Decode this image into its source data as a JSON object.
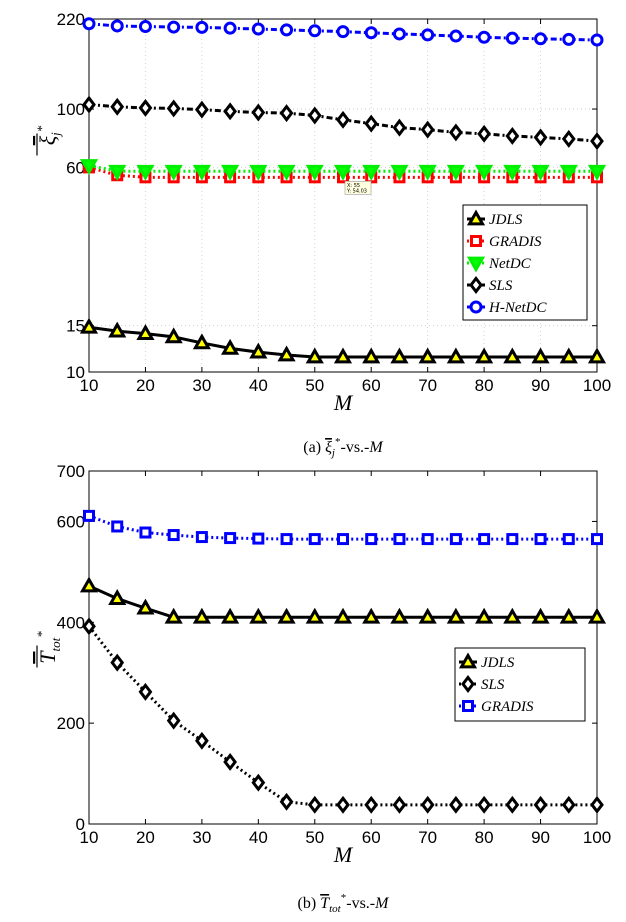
{
  "chart_data": [
    {
      "type": "line",
      "caption": "(a) ξj*-vs.-M",
      "caption_text": {
        "prefix": "(a) ",
        "symbol": "ξ",
        "sub": "j",
        "sup": "*",
        "suffix": "-vs.-",
        "var": "M"
      },
      "ylabel": {
        "symbol": "ξ",
        "sub": "j",
        "sup": "*"
      },
      "xlabel": "M",
      "x": [
        10,
        15,
        20,
        25,
        30,
        35,
        40,
        45,
        50,
        55,
        60,
        65,
        70,
        75,
        80,
        85,
        90,
        95,
        100
      ],
      "xlim": [
        10,
        100
      ],
      "ylim": [
        10,
        220
      ],
      "yscale": "log",
      "yticks": [
        10,
        15,
        60,
        100,
        220
      ],
      "xticks": [
        10,
        20,
        30,
        40,
        50,
        60,
        70,
        80,
        90,
        100
      ],
      "grid": true,
      "legend_position": "right",
      "series": [
        {
          "name": "JDLS",
          "color": "#000000",
          "fill": "#ffff00",
          "marker": "triangle-up",
          "line": "solid",
          "values": [
            14.8,
            14.3,
            14.0,
            13.6,
            12.9,
            12.3,
            11.9,
            11.6,
            11.4,
            11.4,
            11.4,
            11.4,
            11.4,
            11.4,
            11.4,
            11.4,
            11.4,
            11.4,
            11.4
          ]
        },
        {
          "name": "GRADIS",
          "color": "#ff0000",
          "fill": "#ffffff",
          "marker": "square",
          "line": "dotted",
          "values": [
            60,
            56,
            55,
            55,
            55,
            55,
            55,
            55,
            55,
            55,
            55,
            55,
            55,
            55,
            55,
            55,
            55,
            55,
            55
          ]
        },
        {
          "name": "NetDC",
          "color": "#00ee00",
          "fill": "#00ff00",
          "marker": "triangle-down",
          "line": "dotted",
          "values": [
            61,
            58,
            58,
            58,
            58,
            58,
            58,
            58,
            58,
            58,
            58,
            58,
            58,
            58,
            58,
            58,
            58,
            58,
            58
          ]
        },
        {
          "name": "SLS",
          "color": "#000000",
          "fill": "#ffffff",
          "marker": "diamond",
          "line": "dashdot",
          "values": [
            104,
            102,
            101,
            100.5,
            99.5,
            98,
            97,
            96.5,
            94.5,
            91,
            88,
            85,
            83.5,
            81.5,
            80.5,
            79,
            78,
            77,
            75.5
          ]
        },
        {
          "name": "H-NetDC",
          "color": "#0000ff",
          "fill": "#ffffff",
          "marker": "circle",
          "line": "dashdot",
          "values": [
            211,
            207,
            206,
            205,
            204.5,
            203,
            201.5,
            200,
            198.5,
            197,
            195,
            193,
            191.5,
            189.5,
            187.5,
            186,
            185,
            184,
            183
          ]
        }
      ],
      "datatip": {
        "x_label": "X: 55",
        "y_label": "Y: 54.03"
      }
    },
    {
      "type": "line",
      "caption": "(b) T*tot-vs.-M",
      "caption_text": {
        "prefix": "(b) ",
        "symbol": "T",
        "sub": "tot",
        "sup": "*",
        "suffix": "-vs.-",
        "var": "M"
      },
      "ylabel": {
        "symbol": "T",
        "sub": "tot",
        "sup": "*"
      },
      "xlabel": "M",
      "x": [
        10,
        15,
        20,
        25,
        30,
        35,
        40,
        45,
        50,
        55,
        60,
        65,
        70,
        75,
        80,
        85,
        90,
        95,
        100
      ],
      "xlim": [
        10,
        100
      ],
      "ylim": [
        0,
        700
      ],
      "yscale": "linear",
      "yticks": [
        0,
        200,
        400,
        600,
        700
      ],
      "xticks": [
        10,
        20,
        30,
        40,
        50,
        60,
        70,
        80,
        90,
        100
      ],
      "grid": false,
      "legend_position": "right",
      "series": [
        {
          "name": "JDLS",
          "color": "#000000",
          "fill": "#ffff00",
          "marker": "triangle-up",
          "line": "solid",
          "values": [
            472,
            447,
            428,
            410,
            410,
            410,
            410,
            410,
            410,
            410,
            410,
            410,
            410,
            410,
            410,
            410,
            410,
            410,
            410
          ]
        },
        {
          "name": "SLS",
          "color": "#000000",
          "fill": "#ffffff",
          "marker": "diamond",
          "line": "dotted",
          "values": [
            392,
            320,
            262,
            205,
            165,
            123,
            82,
            44,
            38,
            38,
            38,
            38,
            38,
            38,
            38,
            38,
            38,
            38,
            38
          ]
        },
        {
          "name": "GRADIS",
          "color": "#0000ff",
          "fill": "#ffffff",
          "marker": "square",
          "line": "dotted",
          "values": [
            611,
            590,
            578,
            573,
            569,
            567,
            566,
            565,
            565,
            565,
            565,
            565,
            565,
            565,
            565,
            565,
            565,
            565,
            565
          ]
        }
      ]
    }
  ]
}
